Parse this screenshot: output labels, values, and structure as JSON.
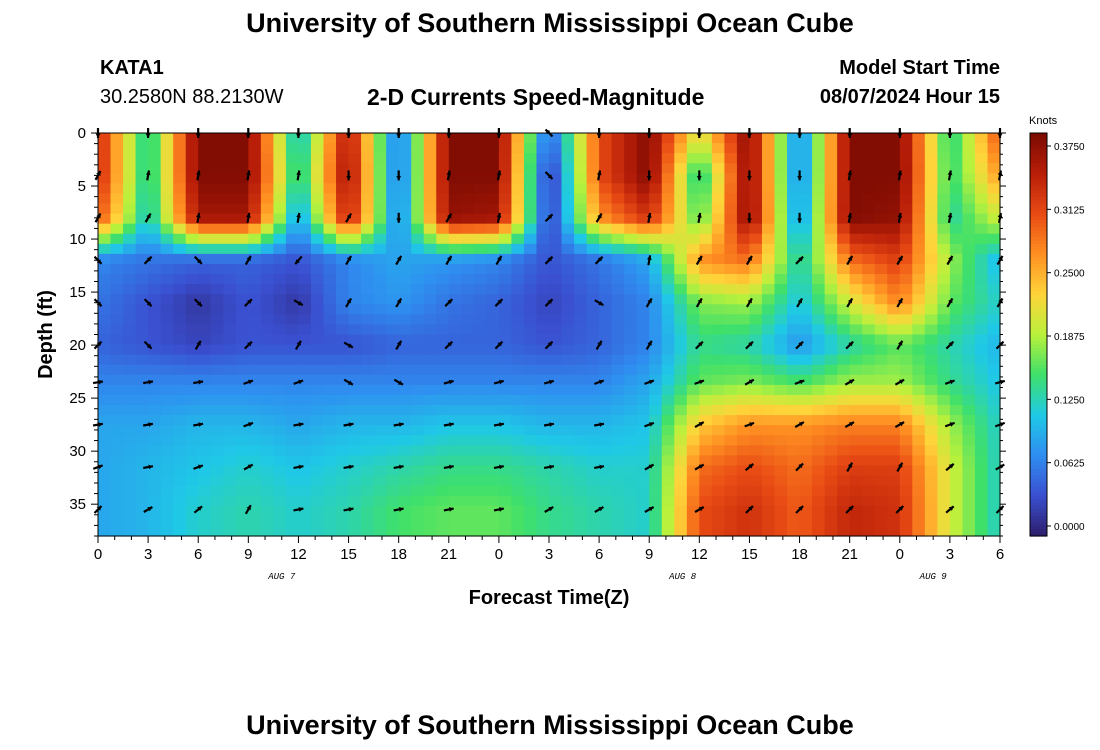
{
  "header": {
    "title": "University of Southern Mississippi Ocean Cube",
    "station_id": "KATA1",
    "coordinates": "30.2580N  88.2130W",
    "chart_title": "2-D Currents Speed-Magnitude",
    "model_start_label": "Model Start Time",
    "model_start_value": "08/07/2024 Hour 15"
  },
  "footer": {
    "title": "University of Southern Mississippi Ocean Cube"
  },
  "chart_data": {
    "type": "heatmap",
    "title": "2-D Currents Speed-Magnitude",
    "xlabel": "Forecast Time(Z)",
    "ylabel": "Depth (ft)",
    "x_tick_labels": [
      "0",
      "3",
      "6",
      "9",
      "12",
      "15",
      "18",
      "21",
      "0",
      "3",
      "6",
      "9",
      "12",
      "15",
      "18",
      "21",
      "0",
      "3",
      "6"
    ],
    "x_date_labels": [
      {
        "label": "AUG 7",
        "at_hours_from_start": 11
      },
      {
        "label": "AUG 8",
        "at_hours_from_start": 35
      },
      {
        "label": "AUG 9",
        "at_hours_from_start": 50
      }
    ],
    "xlim_hours_from_start": [
      0,
      54
    ],
    "y_ticks": [
      0,
      5,
      10,
      15,
      20,
      25,
      30,
      35
    ],
    "ylim": [
      38,
      0
    ],
    "colorbar": {
      "unit": "Knots",
      "ticks": [
        "0.3750",
        "0.3125",
        "0.2500",
        "0.1875",
        "0.1250",
        "0.0625",
        "0.0000"
      ],
      "range": [
        0,
        0.375
      ],
      "colors": [
        "#2d1e6b",
        "#3a4fd0",
        "#2f8ef0",
        "#1fc9e6",
        "#3fe06a",
        "#b9f13c",
        "#ffd43a",
        "#ff8f22",
        "#e84a14",
        "#b81e08",
        "#7a0a02"
      ]
    },
    "grid_times_hours": [
      0,
      3,
      6,
      9,
      12,
      15,
      18,
      21,
      24,
      27,
      30,
      33,
      36,
      39,
      42,
      45,
      48,
      51,
      54
    ],
    "grid_depths_ft": [
      0,
      4,
      8,
      12,
      16,
      20,
      23.5,
      27.5,
      31.5,
      35.5
    ],
    "speed_knots": [
      [
        0.33,
        0.12,
        0.37,
        0.37,
        0.1,
        0.35,
        0.05,
        0.37,
        0.37,
        0.04,
        0.3,
        0.37,
        0.2,
        0.37,
        0.06,
        0.37,
        0.37,
        0.13,
        0.3
      ],
      [
        0.33,
        0.12,
        0.37,
        0.37,
        0.12,
        0.36,
        0.05,
        0.37,
        0.37,
        0.01,
        0.3,
        0.37,
        0.12,
        0.37,
        0.06,
        0.37,
        0.37,
        0.14,
        0.26
      ],
      [
        0.3,
        0.11,
        0.35,
        0.35,
        0.08,
        0.34,
        0.06,
        0.36,
        0.35,
        0.02,
        0.26,
        0.32,
        0.15,
        0.37,
        0.07,
        0.37,
        0.36,
        0.13,
        0.2
      ],
      [
        0.07,
        0.06,
        0.05,
        0.05,
        0.04,
        0.07,
        0.09,
        0.08,
        0.07,
        0.04,
        0.06,
        0.09,
        0.26,
        0.28,
        0.12,
        0.28,
        0.31,
        0.18,
        0.1
      ],
      [
        0.06,
        0.04,
        0.02,
        0.04,
        0.02,
        0.07,
        0.08,
        0.06,
        0.05,
        0.03,
        0.05,
        0.07,
        0.17,
        0.18,
        0.11,
        0.2,
        0.27,
        0.16,
        0.12
      ],
      [
        0.05,
        0.04,
        0.03,
        0.04,
        0.04,
        0.04,
        0.05,
        0.05,
        0.05,
        0.04,
        0.05,
        0.07,
        0.14,
        0.13,
        0.08,
        0.13,
        0.16,
        0.13,
        0.1
      ],
      [
        0.07,
        0.07,
        0.07,
        0.07,
        0.07,
        0.07,
        0.07,
        0.07,
        0.07,
        0.07,
        0.07,
        0.09,
        0.16,
        0.17,
        0.15,
        0.18,
        0.18,
        0.14,
        0.11
      ],
      [
        0.09,
        0.09,
        0.1,
        0.1,
        0.09,
        0.1,
        0.1,
        0.11,
        0.11,
        0.1,
        0.1,
        0.11,
        0.23,
        0.26,
        0.26,
        0.27,
        0.27,
        0.18,
        0.12
      ],
      [
        0.09,
        0.1,
        0.11,
        0.12,
        0.11,
        0.12,
        0.13,
        0.14,
        0.14,
        0.13,
        0.12,
        0.12,
        0.28,
        0.3,
        0.28,
        0.31,
        0.31,
        0.2,
        0.12
      ],
      [
        0.09,
        0.1,
        0.12,
        0.13,
        0.12,
        0.13,
        0.15,
        0.16,
        0.16,
        0.14,
        0.13,
        0.12,
        0.3,
        0.32,
        0.29,
        0.33,
        0.32,
        0.2,
        0.12
      ]
    ],
    "direction_deg": [
      [
        270,
        270,
        270,
        270,
        270,
        270,
        270,
        270,
        270,
        135,
        270,
        270,
        270,
        270,
        270,
        270,
        270,
        270,
        270
      ],
      [
        60,
        80,
        80,
        80,
        80,
        270,
        270,
        80,
        80,
        315,
        80,
        270,
        270,
        270,
        270,
        80,
        80,
        80,
        80
      ],
      [
        60,
        60,
        80,
        80,
        80,
        60,
        270,
        60,
        80,
        45,
        60,
        80,
        80,
        270,
        270,
        80,
        80,
        80,
        80
      ],
      [
        315,
        45,
        315,
        60,
        230,
        60,
        60,
        60,
        60,
        45,
        45,
        80,
        60,
        60,
        45,
        60,
        60,
        60,
        60
      ],
      [
        315,
        315,
        315,
        45,
        330,
        60,
        60,
        45,
        45,
        45,
        330,
        60,
        60,
        60,
        60,
        60,
        60,
        60,
        60
      ],
      [
        45,
        315,
        60,
        45,
        60,
        330,
        60,
        45,
        45,
        45,
        60,
        60,
        45,
        45,
        45,
        45,
        60,
        45,
        45
      ],
      [
        10,
        10,
        10,
        20,
        20,
        330,
        330,
        15,
        15,
        15,
        20,
        20,
        20,
        30,
        20,
        30,
        30,
        20,
        15
      ],
      [
        10,
        10,
        10,
        20,
        10,
        10,
        10,
        10,
        10,
        10,
        10,
        20,
        30,
        20,
        30,
        30,
        30,
        20,
        20
      ],
      [
        20,
        10,
        20,
        30,
        10,
        10,
        10,
        10,
        10,
        10,
        10,
        30,
        30,
        40,
        45,
        60,
        60,
        40,
        30
      ],
      [
        45,
        30,
        40,
        60,
        10,
        10,
        10,
        10,
        10,
        30,
        30,
        30,
        30,
        45,
        45,
        45,
        45,
        40,
        45
      ]
    ]
  }
}
